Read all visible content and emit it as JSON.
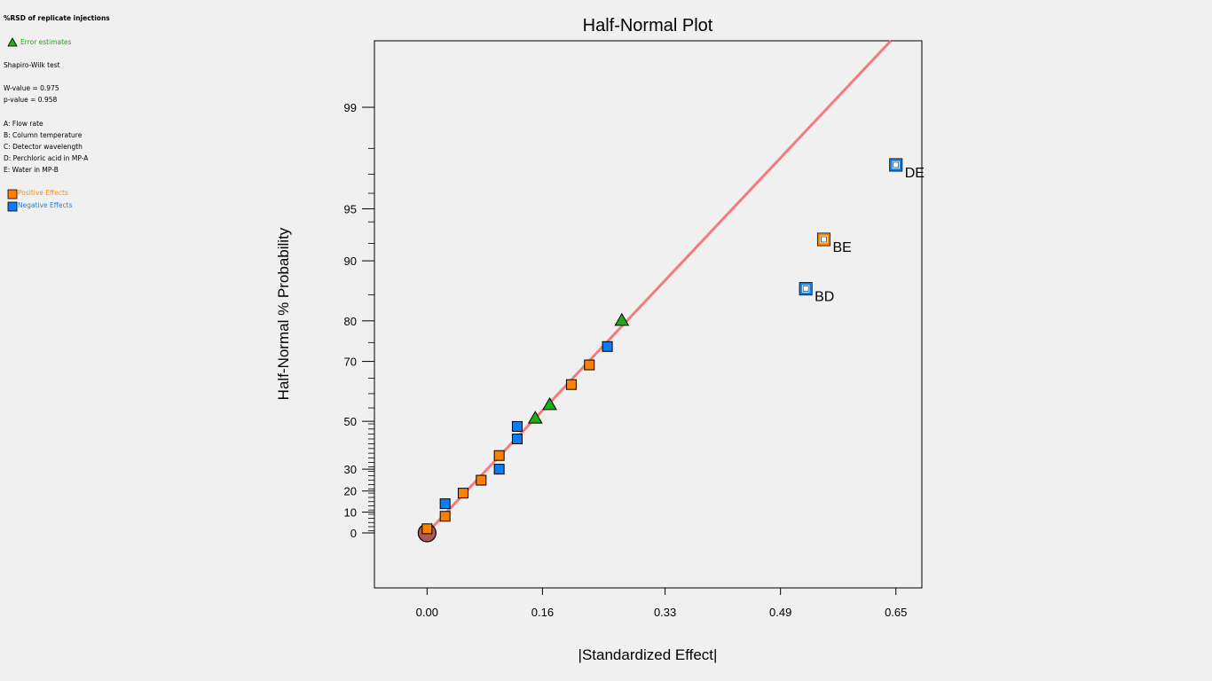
{
  "sidebar": {
    "heading": "%RSD of replicate injections",
    "error_legend": "Error estimates",
    "test_name": "Shapiro-Wilk test",
    "w_value": "W-value = 0.975",
    "p_value": "p-value = 0.958",
    "factors": [
      "A: Flow rate",
      "B: Column temperature",
      "C: Detector wavelength",
      "D: Perchloric acid in MP-A",
      "E: Water in MP-B"
    ],
    "positive_legend": "Positive Effects",
    "negative_legend": "Negative Effects"
  },
  "colors": {
    "positive": "#ff7f00",
    "negative": "#0a7ef0",
    "error": "#1db014",
    "line": "#f47a7c",
    "origin": "#b05a58",
    "positive_text": "#ff8c00",
    "negative_text": "#1e7ee8",
    "error_text": "#1aa80f"
  },
  "chart_data": {
    "type": "scatter",
    "title": "Half-Normal Plot",
    "xlabel": "|Standardized Effect|",
    "ylabel": "Half-Normal % Probability",
    "xlim": [
      -0.073,
      0.686
    ],
    "xticks": [
      "0.00",
      "0.16",
      "0.33",
      "0.49",
      "0.65"
    ],
    "yticks": [
      "0",
      "10",
      "20",
      "30",
      "50",
      "70",
      "80",
      "90",
      "95",
      "99"
    ],
    "series": [
      {
        "name": "Positive Effects",
        "kind": "positive",
        "points": [
          [
            0.0,
            2
          ],
          [
            0.025,
            8
          ],
          [
            0.05,
            19
          ],
          [
            0.075,
            25
          ],
          [
            0.1,
            36
          ],
          [
            0.2,
            63
          ],
          [
            0.225,
            69
          ]
        ]
      },
      {
        "name": "Negative Effects",
        "kind": "negative",
        "points": [
          [
            0.025,
            14
          ],
          [
            0.1,
            30
          ],
          [
            0.125,
            43
          ],
          [
            0.125,
            48
          ],
          [
            0.25,
            74
          ]
        ]
      },
      {
        "name": "Error estimates",
        "kind": "error",
        "points": [
          [
            0.15,
            51
          ],
          [
            0.17,
            56
          ],
          [
            0.27,
            80
          ]
        ]
      }
    ],
    "labeled_effects": [
      {
        "label": "BE",
        "kind": "positive",
        "x": 0.55,
        "y": 92.4
      },
      {
        "label": "BD",
        "kind": "negative",
        "x": 0.525,
        "y": 86
      },
      {
        "label": "DE",
        "kind": "negative",
        "x": 0.65,
        "y": 97.4
      }
    ],
    "origin_point": [
      0.0,
      0
    ],
    "fit_line": [
      [
        0.0,
        0
      ],
      [
        0.643,
        100
      ]
    ]
  }
}
